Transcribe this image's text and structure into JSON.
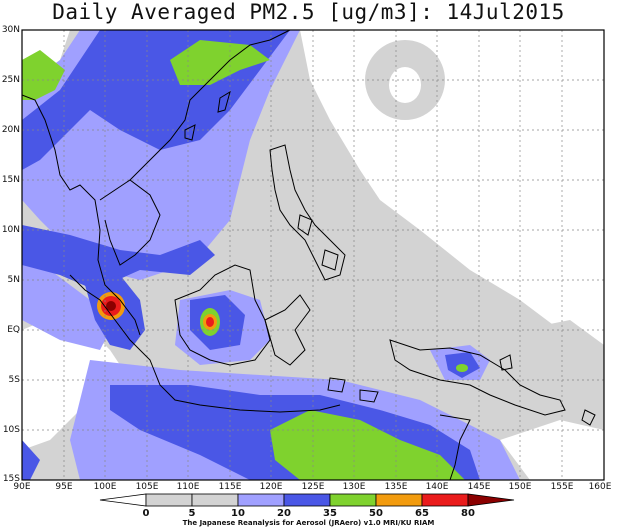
{
  "title": "Daily Averaged PM2.5 [ug/m3]: 14Jul2015",
  "lat_labels": [
    "30N",
    "25N",
    "20N",
    "15N",
    "10N",
    "5N",
    "EQ",
    "5S",
    "10S",
    "15S"
  ],
  "lon_labels": [
    "90E",
    "95E",
    "100E",
    "105E",
    "110E",
    "115E",
    "120E",
    "125E",
    "130E",
    "135E",
    "140E",
    "145E",
    "150E",
    "155E",
    "160E"
  ],
  "legend": {
    "thresholds": [
      "0",
      "5",
      "10",
      "20",
      "35",
      "50",
      "65",
      "80"
    ],
    "colors": [
      "#ffffff",
      "#d3d3d3",
      "#a0a0ff",
      "#4a57e6",
      "#7fd22e",
      "#f29b0e",
      "#ea1c1c",
      "#8b0000"
    ]
  },
  "credit": "The Japanese Reanalysis for Aerosol (JRAero) v1.0 MRI/KU RIAM"
}
